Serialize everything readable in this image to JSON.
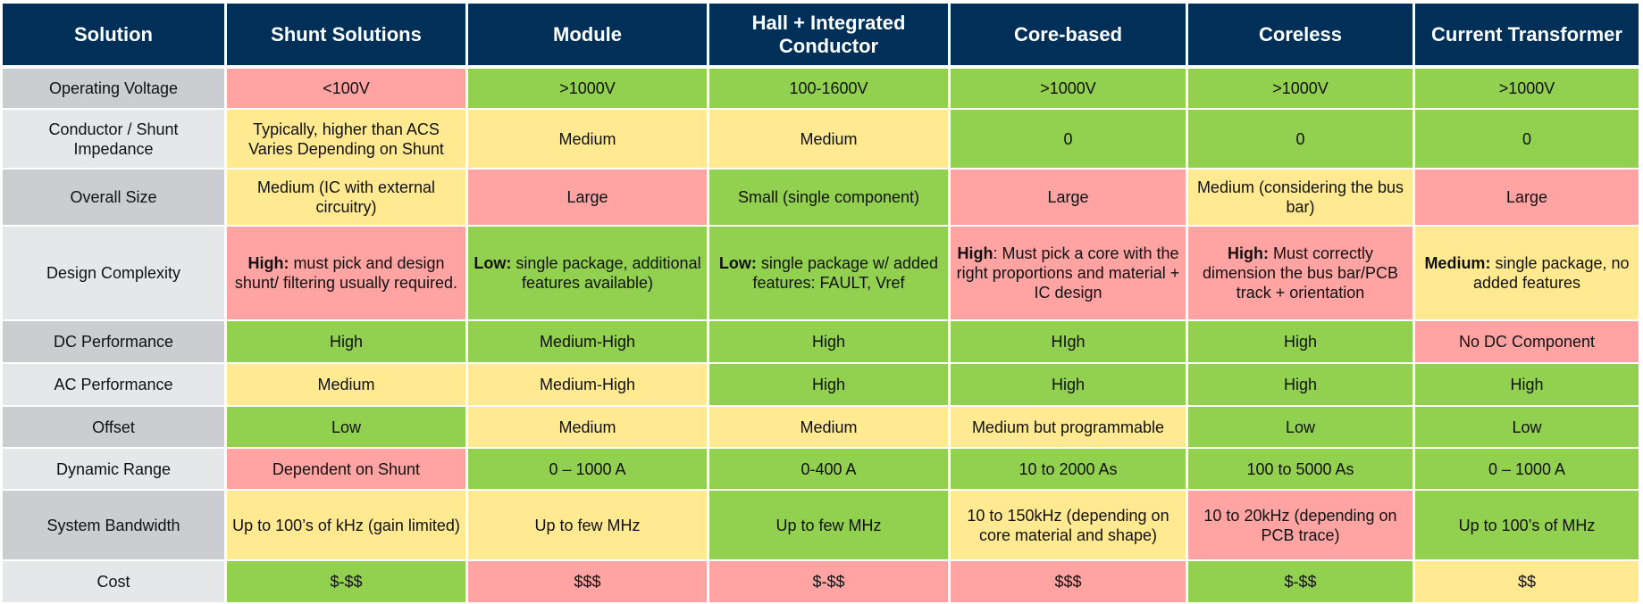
{
  "colors": {
    "header": "#003057",
    "red": "#ffa3a3",
    "green": "#92d050",
    "yellow": "#ffe991",
    "label_dark": "#cbcdd1",
    "label_light": "#e6e7e9"
  },
  "headers": [
    "Solution",
    "Shunt Solutions",
    "Module",
    "Hall + Integrated Conductor",
    "Core-based",
    "Coreless",
    "Current Transformer"
  ],
  "rows": [
    {
      "label": "Operating Voltage",
      "cells": [
        {
          "text": "<100V",
          "color": "red"
        },
        {
          "text": ">1000V",
          "color": "green"
        },
        {
          "text": "100-1600V",
          "color": "green"
        },
        {
          "text": ">1000V",
          "color": "green"
        },
        {
          "text": ">1000V",
          "color": "green"
        },
        {
          "text": ">1000V",
          "color": "green"
        }
      ]
    },
    {
      "label": "Conductor / Shunt Impedance",
      "cells": [
        {
          "text": "Typically, higher than ACS Varies Depending on Shunt",
          "color": "yellow"
        },
        {
          "text": "Medium",
          "color": "yellow"
        },
        {
          "text": "Medium",
          "color": "yellow"
        },
        {
          "text": "0",
          "color": "green"
        },
        {
          "text": "0",
          "color": "green"
        },
        {
          "text": "0",
          "color": "green"
        }
      ]
    },
    {
      "label": "Overall Size",
      "cells": [
        {
          "text": "Medium (IC with external circuitry)",
          "color": "yellow"
        },
        {
          "text": "Large",
          "color": "red"
        },
        {
          "text": "Small (single component)",
          "color": "green"
        },
        {
          "text": "Large",
          "color": "red"
        },
        {
          "text": "Medium (considering the bus bar)",
          "color": "yellow"
        },
        {
          "text": "Large",
          "color": "red"
        }
      ]
    },
    {
      "label": "Design Complexity",
      "cells": [
        {
          "bold": "High:",
          "text": " must pick and design shunt/ filtering usually required.",
          "color": "red"
        },
        {
          "bold": "Low:",
          "text": " single package, additional features available)",
          "color": "green"
        },
        {
          "bold": "Low:",
          "text": " single package w/ added features: FAULT, Vref",
          "color": "green"
        },
        {
          "bold": "High",
          "text": ": Must pick a core with the right proportions and material + IC design",
          "color": "red"
        },
        {
          "bold": "High:",
          "text": " Must correctly dimension the bus bar/PCB track + orientation",
          "color": "red"
        },
        {
          "bold": "Medium:",
          "text": " single package, no added features",
          "color": "yellow"
        }
      ]
    },
    {
      "label": "DC Performance",
      "cells": [
        {
          "text": "High",
          "color": "green"
        },
        {
          "text": "Medium-High",
          "color": "green"
        },
        {
          "text": "High",
          "color": "green"
        },
        {
          "text": "HIgh",
          "color": "green"
        },
        {
          "text": "High",
          "color": "green"
        },
        {
          "text": "No DC Component",
          "color": "red"
        }
      ]
    },
    {
      "label": "AC Performance",
      "cells": [
        {
          "text": "Medium",
          "color": "yellow"
        },
        {
          "text": "Medium-High",
          "color": "yellow"
        },
        {
          "text": "High",
          "color": "green"
        },
        {
          "text": "High",
          "color": "green"
        },
        {
          "text": "High",
          "color": "green"
        },
        {
          "text": "High",
          "color": "green"
        }
      ]
    },
    {
      "label": "Offset",
      "cells": [
        {
          "text": "Low",
          "color": "green"
        },
        {
          "text": "Medium",
          "color": "yellow"
        },
        {
          "text": "Medium",
          "color": "yellow"
        },
        {
          "text": "Medium but programmable",
          "color": "yellow"
        },
        {
          "text": "Low",
          "color": "green"
        },
        {
          "text": "Low",
          "color": "green"
        }
      ]
    },
    {
      "label": "Dynamic Range",
      "cells": [
        {
          "text": "Dependent on Shunt",
          "color": "red"
        },
        {
          "text": "0 – 1000 A",
          "color": "green"
        },
        {
          "text": "0-400 A",
          "color": "green"
        },
        {
          "text": "10 to 2000 As",
          "color": "green"
        },
        {
          "text": "100 to 5000 As",
          "color": "green"
        },
        {
          "text": "0 – 1000 A",
          "color": "green"
        }
      ]
    },
    {
      "label": "System Bandwidth",
      "cells": [
        {
          "text": "Up to 100’s of kHz (gain limited)",
          "color": "yellow"
        },
        {
          "text": "Up to few MHz",
          "color": "yellow"
        },
        {
          "text": "Up to few MHz",
          "color": "green"
        },
        {
          "text": "10 to 150kHz (depending on core material and shape)",
          "color": "yellow"
        },
        {
          "text": "10 to 20kHz (depending on PCB trace)",
          "color": "red"
        },
        {
          "text": "Up to 100’s of MHz",
          "color": "green"
        }
      ]
    },
    {
      "label": "Cost",
      "cells": [
        {
          "text": "$-$$",
          "color": "green"
        },
        {
          "text": "$$$",
          "color": "red"
        },
        {
          "text": "$-$$",
          "color": "red"
        },
        {
          "text": "$$$",
          "color": "red"
        },
        {
          "text": "$-$$",
          "color": "green"
        },
        {
          "text": "$$",
          "color": "yellow"
        }
      ]
    }
  ]
}
